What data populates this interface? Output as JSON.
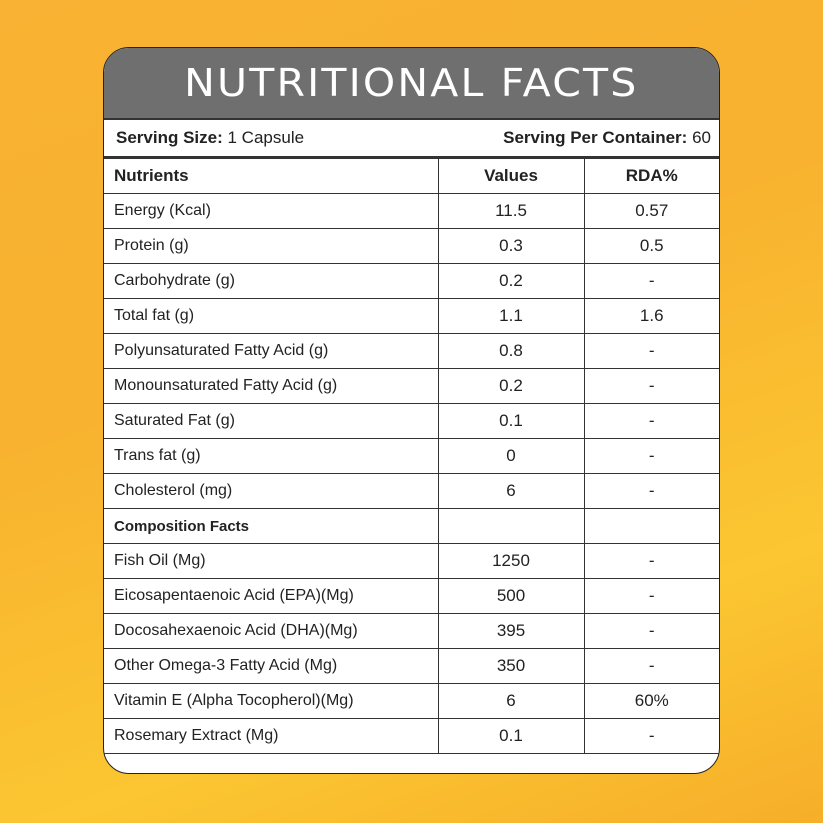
{
  "title": "NUTRITIONAL FACTS",
  "serving": {
    "size_label": "Serving Size:",
    "size_value": "1 Capsule",
    "per_container_label": "Serving Per Container:",
    "per_container_value": "60"
  },
  "columns": [
    "Nutrients",
    "Values",
    "RDA%"
  ],
  "rows": [
    {
      "name": "Energy (Kcal)",
      "value": "11.5",
      "rda": "0.57"
    },
    {
      "name": "Protein (g)",
      "value": "0.3",
      "rda": "0.5"
    },
    {
      "name": "Carbohydrate (g)",
      "value": "0.2",
      "rda": "-"
    },
    {
      "name": "Total fat (g)",
      "value": "1.1",
      "rda": "1.6"
    },
    {
      "name": "Polyunsaturated Fatty Acid (g)",
      "value": "0.8",
      "rda": "-"
    },
    {
      "name": "Monounsaturated Fatty Acid (g)",
      "value": "0.2",
      "rda": "-"
    },
    {
      "name": "Saturated Fat (g)",
      "value": "0.1",
      "rda": "-"
    },
    {
      "name": "Trans fat (g)",
      "value": "0",
      "rda": "-"
    },
    {
      "name": "Cholesterol (mg)",
      "value": "6",
      "rda": "-"
    }
  ],
  "composition_header": "Composition Facts",
  "composition": [
    {
      "name": "Fish Oil (Mg)",
      "value": "1250",
      "rda": "-"
    },
    {
      "name": "Eicosapentaenoic Acid (EPA)(Mg)",
      "value": "500",
      "rda": "-"
    },
    {
      "name": "Docosahexaenoic Acid (DHA)(Mg)",
      "value": "395",
      "rda": "-"
    },
    {
      "name": "Other Omega-3 Fatty Acid (Mg)",
      "value": "350",
      "rda": "-"
    },
    {
      "name": "Vitamin E (Alpha Tocopherol)(Mg)",
      "value": "6",
      "rda": "60%"
    },
    {
      "name": "Rosemary Extract (Mg)",
      "value": "0.1",
      "rda": "-"
    }
  ],
  "colors": {
    "background": "#f9b233",
    "title_bar": "#6f6f6f",
    "border": "#333333"
  }
}
